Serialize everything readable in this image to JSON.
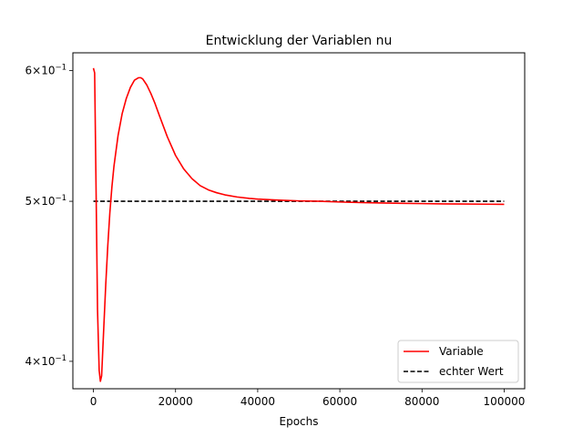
{
  "chart_data": {
    "type": "line",
    "title": "Entwicklung der Variablen nu",
    "xlabel": "Epochs",
    "ylabel": "",
    "xlim": [
      -5000,
      105000
    ],
    "ylim": [
      0.385,
      0.615
    ],
    "yscale": "log",
    "grid": false,
    "legend_position": "lower-right",
    "x_ticks": [
      {
        "value": 0,
        "label": "0"
      },
      {
        "value": 20000,
        "label": "20000"
      },
      {
        "value": 40000,
        "label": "40000"
      },
      {
        "value": 60000,
        "label": "60000"
      },
      {
        "value": 80000,
        "label": "80000"
      },
      {
        "value": 100000,
        "label": "100000"
      }
    ],
    "y_ticks": [
      {
        "value": 0.4,
        "mantissa": "4",
        "base": "10",
        "exponent": "−1"
      },
      {
        "value": 0.5,
        "mantissa": "5",
        "base": "10",
        "exponent": "−1"
      },
      {
        "value": 0.6,
        "mantissa": "6",
        "base": "10",
        "exponent": "−1"
      }
    ],
    "series": [
      {
        "name": "Variable",
        "color": "#ff0000",
        "style": "solid",
        "x": [
          0,
          300,
          600,
          1000,
          1400,
          1700,
          2000,
          2500,
          3000,
          3500,
          4000,
          4500,
          5000,
          6000,
          7000,
          8000,
          9000,
          10000,
          11000,
          11500,
          12000,
          13000,
          14000,
          15000,
          16000,
          18000,
          20000,
          22000,
          24000,
          26000,
          28000,
          30000,
          32000,
          35000,
          38000,
          40000,
          45000,
          50000,
          55000,
          60000,
          65000,
          70000,
          75000,
          80000,
          85000,
          90000,
          95000,
          100000
        ],
        "y": [
          0.602,
          0.598,
          0.52,
          0.43,
          0.395,
          0.389,
          0.392,
          0.418,
          0.445,
          0.47,
          0.492,
          0.51,
          0.525,
          0.548,
          0.565,
          0.577,
          0.586,
          0.592,
          0.594,
          0.594,
          0.593,
          0.588,
          0.581,
          0.573,
          0.564,
          0.547,
          0.533,
          0.523,
          0.516,
          0.511,
          0.508,
          0.506,
          0.5045,
          0.503,
          0.502,
          0.5015,
          0.5008,
          0.5003,
          0.5,
          0.4995,
          0.4991,
          0.4988,
          0.4986,
          0.4984,
          0.4982,
          0.4981,
          0.498,
          0.4979
        ]
      },
      {
        "name": "echter Wert",
        "color": "#000000",
        "style": "dashed",
        "x": [
          0,
          100000
        ],
        "y": [
          0.5,
          0.5
        ]
      }
    ]
  }
}
